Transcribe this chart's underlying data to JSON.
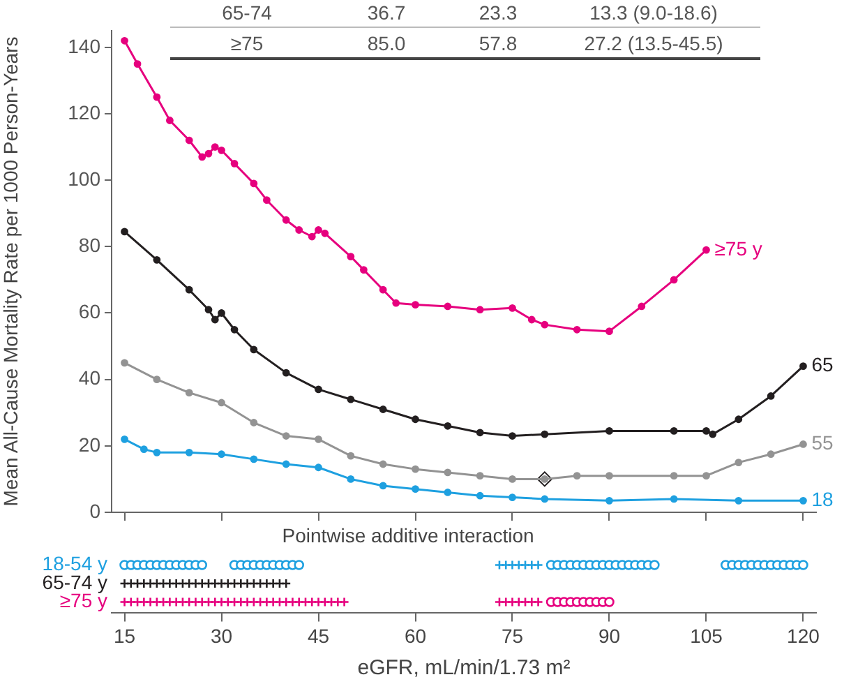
{
  "chart_data": [
    {
      "type": "line",
      "ylabel": "Mean All-Cause Mortality Rate per 1000 Person-Years",
      "annotations": [
        "65-74",
        "36.7",
        "23.3",
        "13.3 (9.0-18.6)",
        "≥75",
        "85.0",
        "57.8",
        "27.2 (13.5-45.5)"
      ],
      "xlim": [
        13,
        122
      ],
      "xticks": [
        15,
        30,
        45,
        60,
        75,
        90,
        105,
        120
      ],
      "ylim": [
        0,
        145
      ],
      "yticks": [
        0,
        20,
        40,
        60,
        80,
        100,
        120,
        140
      ],
      "tick_labels": "y",
      "grid": false,
      "legend": false,
      "marker": "circle",
      "series": [
        {
          "name": "≥75 y",
          "color": "#e6007e",
          "x": [
            15,
            17,
            20,
            22,
            25,
            27,
            28,
            29,
            30,
            32,
            35,
            37,
            40,
            42,
            44,
            45,
            46,
            50,
            52,
            55,
            57,
            60,
            65,
            70,
            75,
            78,
            80,
            85,
            90,
            95,
            100,
            105
          ],
          "values": [
            142,
            135,
            125,
            118,
            112,
            107,
            108,
            110,
            109,
            105,
            99,
            94,
            88,
            85,
            83,
            85,
            84,
            77,
            73,
            67,
            63,
            62.5,
            62,
            61,
            61.5,
            58,
            56.5,
            55,
            54.5,
            62,
            70,
            79
          ]
        },
        {
          "name": "65",
          "color": "#231f20",
          "x": [
            15,
            20,
            25,
            28,
            29,
            30,
            32,
            35,
            40,
            45,
            50,
            55,
            60,
            65,
            70,
            75,
            80,
            90,
            100,
            105,
            106,
            110,
            115,
            120
          ],
          "values": [
            84.5,
            76,
            67,
            61,
            58,
            60,
            55,
            49,
            42,
            37,
            34,
            31,
            28,
            26,
            24,
            23,
            23.5,
            24.5,
            24.5,
            24.5,
            23.5,
            28,
            35,
            44
          ]
        },
        {
          "name": "55",
          "color": "#939393",
          "x": [
            15,
            20,
            25,
            30,
            35,
            40,
            45,
            50,
            55,
            60,
            65,
            70,
            75,
            80,
            85,
            90,
            100,
            105,
            110,
            115,
            120
          ],
          "values": [
            45,
            40,
            36,
            33,
            27,
            23,
            22,
            17,
            14.5,
            13,
            12,
            11,
            10,
            10,
            11,
            11,
            11,
            11,
            15,
            17.5,
            20.5
          ]
        },
        {
          "name": "18",
          "color": "#1ea0e0",
          "x": [
            15,
            18,
            20,
            25,
            30,
            35,
            40,
            45,
            50,
            55,
            60,
            65,
            70,
            75,
            80,
            90,
            100,
            110,
            120
          ],
          "values": [
            22,
            19,
            18,
            18,
            17.5,
            16,
            14.5,
            13.5,
            10,
            8,
            7,
            6,
            5,
            4.5,
            4,
            3.5,
            4,
            3.5,
            3.5
          ]
        },
        {
          "marker": "diamond",
          "color": "#231f20",
          "x": [
            80
          ],
          "values": [
            10
          ]
        }
      ]
    },
    {
      "type": "scatter",
      "orientation": "horizontal",
      "title": "Pointwise additive interaction",
      "xlabel": "eGFR, mL/min/1.73 m²",
      "categories": [
        "18-54 y",
        "65-74 y",
        "≥75 y"
      ],
      "xlim": [
        13,
        122
      ],
      "xticks": [
        15,
        30,
        45,
        60,
        75,
        90,
        105,
        120
      ],
      "grid": false,
      "legend": false,
      "series": [
        {
          "color": "#1ea0e0",
          "marker": "circle",
          "x": [
            "18-54 y",
            "18-54 y",
            "18-54 y",
            "18-54 y",
            "18-54 y",
            "18-54 y",
            "18-54 y",
            "18-54 y",
            "18-54 y",
            "18-54 y",
            "18-54 y",
            "18-54 y",
            "18-54 y",
            "18-54 y",
            "18-54 y",
            "18-54 y",
            "18-54 y",
            "18-54 y",
            "18-54 y",
            "18-54 y",
            "18-54 y",
            "18-54 y",
            "18-54 y",
            "18-54 y",
            "18-54 y",
            "18-54 y",
            "18-54 y",
            "18-54 y",
            "18-54 y",
            "18-54 y",
            "18-54 y",
            "18-54 y",
            "18-54 y",
            "18-54 y",
            "18-54 y",
            "18-54 y",
            "18-54 y",
            "18-54 y",
            "18-54 y",
            "18-54 y",
            "18-54 y",
            "18-54 y",
            "18-54 y",
            "18-54 y",
            "18-54 y",
            "18-54 y",
            "18-54 y",
            "18-54 y",
            "18-54 y",
            "18-54 y",
            "18-54 y",
            "18-54 y",
            "18-54 y",
            "18-54 y"
          ],
          "values": [
            15,
            16,
            17,
            18,
            19,
            20,
            21,
            22,
            23,
            24,
            25,
            26,
            27,
            32,
            33,
            34,
            35,
            36,
            37,
            38,
            39,
            40,
            41,
            42,
            81,
            82,
            83,
            84,
            85,
            86,
            87,
            88,
            89,
            90,
            91,
            92,
            93,
            94,
            95,
            96,
            97,
            108,
            109,
            110,
            111,
            112,
            113,
            114,
            115,
            116,
            117,
            118,
            119,
            120
          ]
        },
        {
          "color": "#1ea0e0",
          "marker": "cross",
          "x": [
            "18-54 y",
            "18-54 y",
            "18-54 y",
            "18-54 y",
            "18-54 y",
            "18-54 y",
            "18-54 y"
          ],
          "values": [
            73,
            74,
            75,
            76,
            77,
            78,
            79
          ]
        },
        {
          "color": "#231f20",
          "marker": "cross",
          "x": [
            "65-74 y",
            "65-74 y",
            "65-74 y",
            "65-74 y",
            "65-74 y",
            "65-74 y",
            "65-74 y",
            "65-74 y",
            "65-74 y",
            "65-74 y",
            "65-74 y",
            "65-74 y",
            "65-74 y",
            "65-74 y",
            "65-74 y",
            "65-74 y",
            "65-74 y",
            "65-74 y",
            "65-74 y",
            "65-74 y",
            "65-74 y",
            "65-74 y",
            "65-74 y",
            "65-74 y",
            "65-74 y",
            "65-74 y"
          ],
          "values": [
            15,
            16,
            17,
            18,
            19,
            20,
            21,
            22,
            23,
            24,
            25,
            26,
            27,
            28,
            29,
            30,
            31,
            32,
            33,
            34,
            35,
            36,
            37,
            38,
            39,
            40
          ]
        },
        {
          "color": "#e6007e",
          "marker": "cross",
          "x": [
            "≥75 y",
            "≥75 y",
            "≥75 y",
            "≥75 y",
            "≥75 y",
            "≥75 y",
            "≥75 y",
            "≥75 y",
            "≥75 y",
            "≥75 y",
            "≥75 y",
            "≥75 y",
            "≥75 y",
            "≥75 y",
            "≥75 y",
            "≥75 y",
            "≥75 y",
            "≥75 y",
            "≥75 y",
            "≥75 y",
            "≥75 y",
            "≥75 y",
            "≥75 y",
            "≥75 y",
            "≥75 y",
            "≥75 y",
            "≥75 y",
            "≥75 y",
            "≥75 y",
            "≥75 y",
            "≥75 y",
            "≥75 y",
            "≥75 y",
            "≥75 y",
            "≥75 y",
            "≥75 y",
            "≥75 y",
            "≥75 y",
            "≥75 y",
            "≥75 y",
            "≥75 y",
            "≥75 y"
          ],
          "values": [
            15,
            16,
            17,
            18,
            19,
            20,
            21,
            22,
            23,
            24,
            25,
            26,
            27,
            28,
            29,
            30,
            31,
            32,
            33,
            34,
            35,
            36,
            37,
            38,
            39,
            40,
            41,
            42,
            43,
            44,
            45,
            46,
            47,
            48,
            49,
            73,
            74,
            75,
            76,
            77,
            78,
            79
          ]
        },
        {
          "color": "#e6007e",
          "marker": "circle",
          "x": [
            "≥75 y",
            "≥75 y",
            "≥75 y",
            "≥75 y",
            "≥75 y",
            "≥75 y",
            "≥75 y",
            "≥75 y",
            "≥75 y",
            "≥75 y"
          ],
          "values": [
            81,
            82,
            83,
            84,
            85,
            86,
            87,
            88,
            89,
            90
          ]
        }
      ]
    }
  ]
}
